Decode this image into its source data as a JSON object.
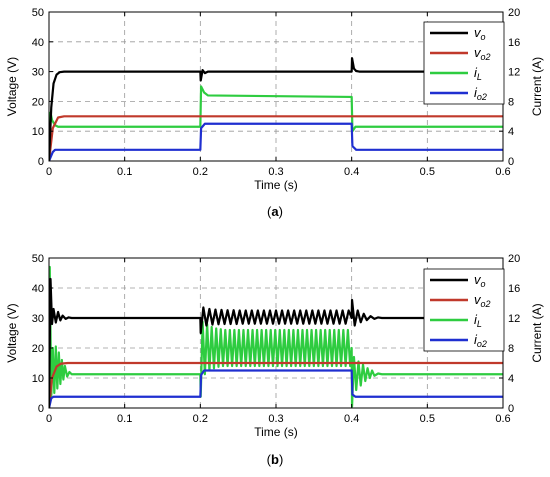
{
  "chart_data": [
    {
      "type": "line",
      "caption": "(a)",
      "caption_letter": "a",
      "xlabel": "Time (s)",
      "ylabel_left": "Voltage (V)",
      "ylabel_right": "Current (A)",
      "xlim": [
        0,
        0.6
      ],
      "ylim_left": [
        0,
        50
      ],
      "ylim_right": [
        0,
        20
      ],
      "x_ticks": [
        "0",
        "0.1",
        "0.2",
        "0.3",
        "0.4",
        "0.5",
        "0.6"
      ],
      "y_left_ticks": [
        "0",
        "10",
        "20",
        "30",
        "40",
        "50"
      ],
      "y_right_ticks": [
        "0",
        "4",
        "8",
        "12",
        "16",
        "20"
      ],
      "grid": true,
      "legend_position": "top-right",
      "series": [
        {
          "name": "v",
          "sub": "o",
          "axis": "left",
          "color": "#000000",
          "x": [
            0,
            0.003,
            0.006,
            0.01,
            0.014,
            0.02,
            0.2,
            0.2005,
            0.203,
            0.206,
            0.21,
            0.4,
            0.4005,
            0.403,
            0.406,
            0.41,
            0.6
          ],
          "y": [
            0,
            18,
            26,
            29,
            29.8,
            30,
            30,
            27,
            30.5,
            29.5,
            30,
            30,
            34.5,
            31,
            30.2,
            30,
            30
          ]
        },
        {
          "name": "v",
          "sub": "o2",
          "axis": "left",
          "color": "#c0392b",
          "x": [
            0,
            0.005,
            0.012,
            0.02,
            0.6
          ],
          "y": [
            0,
            11,
            14.6,
            15,
            15
          ]
        },
        {
          "name": "i",
          "sub": "L",
          "axis": "right",
          "color": "#2ecc40",
          "x": [
            0,
            0.002,
            0.004,
            0.008,
            0.012,
            0.02,
            0.2,
            0.201,
            0.205,
            0.21,
            0.4,
            0.401,
            0.405,
            0.41,
            0.6
          ],
          "y": [
            0,
            6.5,
            5.5,
            4.8,
            4.6,
            4.6,
            4.6,
            10,
            9.2,
            8.8,
            8.6,
            4,
            4.6,
            4.6,
            4.6
          ]
        },
        {
          "name": "i",
          "sub": "o2",
          "axis": "right",
          "color": "#1f2fd0",
          "x": [
            0,
            0.005,
            0.008,
            0.2,
            0.201,
            0.206,
            0.4,
            0.401,
            0.406,
            0.6
          ],
          "y": [
            0,
            1.2,
            1.5,
            1.5,
            4.4,
            5,
            5,
            2,
            1.5,
            1.5
          ]
        }
      ]
    },
    {
      "type": "line",
      "caption": "(b)",
      "caption_letter": "b",
      "xlabel": "Time (s)",
      "ylabel_left": "Voltage (V)",
      "ylabel_right": "Current (A)",
      "xlim": [
        0,
        0.6
      ],
      "ylim_left": [
        0,
        50
      ],
      "ylim_right": [
        0,
        20
      ],
      "x_ticks": [
        "0",
        "0.1",
        "0.2",
        "0.3",
        "0.4",
        "0.5",
        "0.6"
      ],
      "y_left_ticks": [
        "0",
        "10",
        "20",
        "30",
        "40",
        "50"
      ],
      "y_right_ticks": [
        "0",
        "4",
        "8",
        "12",
        "16",
        "20"
      ],
      "grid": true,
      "legend_position": "top-right",
      "series": [
        {
          "name": "v",
          "sub": "o",
          "axis": "left",
          "color": "#000000",
          "x": [
            0,
            0.002,
            0.004,
            0.006,
            0.009,
            0.012,
            0.015,
            0.018,
            0.022,
            0.026,
            0.03,
            0.2,
            0.2005,
            0.204,
            0.208,
            0.212,
            0.216,
            0.22,
            0.224,
            0.228,
            0.232,
            0.236,
            0.24,
            0.244,
            0.248,
            0.252,
            0.256,
            0.26,
            0.264,
            0.268,
            0.272,
            0.276,
            0.28,
            0.284,
            0.288,
            0.292,
            0.296,
            0.3,
            0.304,
            0.308,
            0.312,
            0.316,
            0.32,
            0.324,
            0.328,
            0.332,
            0.336,
            0.34,
            0.344,
            0.348,
            0.352,
            0.356,
            0.36,
            0.364,
            0.368,
            0.372,
            0.376,
            0.38,
            0.384,
            0.388,
            0.392,
            0.396,
            0.4,
            0.4005,
            0.404,
            0.408,
            0.412,
            0.416,
            0.42,
            0.425,
            0.43,
            0.435,
            0.44,
            0.6
          ],
          "y": [
            0,
            43,
            28,
            33,
            28.5,
            32,
            29.2,
            30.8,
            29.7,
            30.2,
            30,
            30,
            25,
            33.5,
            27.5,
            33,
            27.8,
            32.8,
            27.9,
            32.7,
            28,
            32.6,
            28,
            32.6,
            28,
            32.5,
            28.1,
            32.5,
            28.1,
            32.5,
            28.1,
            32.5,
            28.1,
            32.5,
            28.1,
            32.5,
            28.1,
            32.5,
            28.1,
            32.5,
            28.1,
            32.5,
            28.1,
            32.5,
            28.1,
            32.5,
            28.1,
            32.5,
            28.1,
            32.5,
            28.1,
            32.5,
            28.1,
            32.5,
            28.1,
            32.5,
            28.1,
            32.5,
            28.1,
            32.5,
            28.1,
            32.5,
            30,
            36,
            27.5,
            32.5,
            28.6,
            31.4,
            29.3,
            30.6,
            29.7,
            30.2,
            30,
            30
          ]
        },
        {
          "name": "v",
          "sub": "o2",
          "axis": "left",
          "color": "#c0392b",
          "x": [
            0,
            0.004,
            0.01,
            0.016,
            0.025,
            0.6
          ],
          "y": [
            0,
            10,
            13.8,
            14.8,
            15,
            15
          ]
        },
        {
          "name": "i",
          "sub": "L",
          "axis": "right",
          "color": "#2ecc40",
          "x": [
            0,
            0.001,
            0.003,
            0.005,
            0.007,
            0.009,
            0.011,
            0.013,
            0.015,
            0.017,
            0.019,
            0.021,
            0.024,
            0.027,
            0.03,
            0.2,
            0.2005,
            0.203,
            0.206,
            0.209,
            0.212,
            0.215,
            0.218,
            0.221,
            0.224,
            0.227,
            0.23,
            0.233,
            0.236,
            0.239,
            0.242,
            0.245,
            0.248,
            0.251,
            0.254,
            0.257,
            0.26,
            0.263,
            0.266,
            0.269,
            0.272,
            0.275,
            0.278,
            0.281,
            0.284,
            0.287,
            0.29,
            0.293,
            0.296,
            0.299,
            0.302,
            0.305,
            0.308,
            0.311,
            0.314,
            0.317,
            0.32,
            0.323,
            0.326,
            0.329,
            0.332,
            0.335,
            0.338,
            0.341,
            0.344,
            0.347,
            0.35,
            0.353,
            0.356,
            0.359,
            0.362,
            0.365,
            0.368,
            0.371,
            0.374,
            0.377,
            0.38,
            0.383,
            0.386,
            0.389,
            0.392,
            0.395,
            0.398,
            0.4,
            0.4005,
            0.403,
            0.406,
            0.409,
            0.412,
            0.415,
            0.418,
            0.421,
            0.424,
            0.427,
            0.43,
            0.435,
            0.44,
            0.6
          ],
          "y": [
            0,
            18.8,
            1.5,
            8,
            2,
            8.2,
            2.6,
            7.4,
            3.2,
            6.4,
            3.8,
            5.6,
            4.2,
            4.8,
            4.5,
            4.5,
            1.5,
            11.5,
            4.5,
            11.2,
            5,
            10.8,
            5.3,
            10.6,
            5.5,
            10.5,
            5.6,
            10.4,
            5.6,
            10.4,
            5.6,
            10.4,
            5.6,
            10.4,
            5.6,
            10.4,
            5.6,
            10.4,
            5.6,
            10.4,
            5.6,
            10.4,
            5.6,
            10.4,
            5.6,
            10.4,
            5.6,
            10.4,
            5.6,
            10.4,
            5.6,
            10.4,
            5.6,
            10.4,
            5.6,
            10.4,
            5.6,
            10.4,
            5.6,
            10.4,
            5.6,
            10.4,
            5.6,
            10.4,
            5.6,
            10.4,
            5.6,
            10.4,
            5.6,
            10.4,
            5.6,
            10.4,
            5.6,
            10.4,
            5.6,
            10.4,
            5.6,
            10.4,
            5.6,
            10.4,
            5.6,
            10.4,
            5.6,
            8,
            0.2,
            6.8,
            2.4,
            6.2,
            3,
            5.8,
            3.6,
            5.3,
            4,
            5,
            4.3,
            4.6,
            4.5,
            4.5
          ]
        },
        {
          "name": "i",
          "sub": "o2",
          "axis": "right",
          "color": "#1f2fd0",
          "x": [
            0,
            0.003,
            0.006,
            0.2,
            0.201,
            0.205,
            0.4,
            0.401,
            0.405,
            0.6
          ],
          "y": [
            0,
            1.3,
            1.5,
            1.5,
            4.4,
            5,
            5,
            1.8,
            1.5,
            1.5
          ]
        }
      ]
    }
  ]
}
